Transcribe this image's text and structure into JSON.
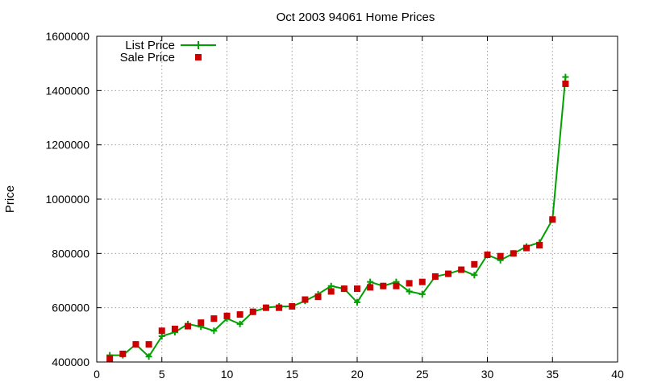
{
  "chart_data": {
    "type": "line",
    "title": "Oct 2003 94061 Home Prices",
    "xlabel": "",
    "ylabel": "Price",
    "xlim": [
      0,
      40
    ],
    "ylim": [
      400000,
      1600000
    ],
    "xticks": [
      0,
      5,
      10,
      15,
      20,
      25,
      30,
      35,
      40
    ],
    "yticks": [
      400000,
      600000,
      800000,
      1000000,
      1200000,
      1400000,
      1600000
    ],
    "grid": true,
    "legend_position": "top-left",
    "series": [
      {
        "name": "List Price",
        "style": "line-with-plus",
        "color": "#00a000",
        "x": [
          1,
          2,
          3,
          4,
          5,
          6,
          7,
          8,
          9,
          10,
          11,
          12,
          13,
          14,
          15,
          16,
          17,
          18,
          19,
          20,
          21,
          22,
          23,
          24,
          25,
          26,
          27,
          28,
          29,
          30,
          31,
          32,
          33,
          34,
          35,
          36
        ],
        "values": [
          425000,
          425000,
          465000,
          420000,
          495000,
          510000,
          540000,
          530000,
          515000,
          560000,
          540000,
          585000,
          600000,
          605000,
          605000,
          625000,
          650000,
          680000,
          670000,
          620000,
          695000,
          680000,
          695000,
          660000,
          650000,
          715000,
          725000,
          740000,
          720000,
          795000,
          775000,
          800000,
          825000,
          840000,
          925000,
          1450000
        ]
      },
      {
        "name": "Sale Price",
        "style": "square-points",
        "color": "#cc0000",
        "x": [
          1,
          2,
          3,
          4,
          5,
          6,
          7,
          8,
          9,
          10,
          11,
          12,
          13,
          14,
          15,
          16,
          17,
          18,
          19,
          20,
          21,
          22,
          23,
          24,
          25,
          26,
          27,
          28,
          29,
          30,
          31,
          32,
          33,
          34,
          35,
          36
        ],
        "values": [
          413000,
          430000,
          465000,
          465000,
          515000,
          522000,
          532000,
          545000,
          560000,
          570000,
          575000,
          585000,
          600000,
          600000,
          605000,
          630000,
          640000,
          660000,
          670000,
          670000,
          675000,
          680000,
          680000,
          690000,
          695000,
          715000,
          725000,
          740000,
          760000,
          795000,
          790000,
          800000,
          820000,
          830000,
          925000,
          1425000
        ]
      }
    ]
  }
}
